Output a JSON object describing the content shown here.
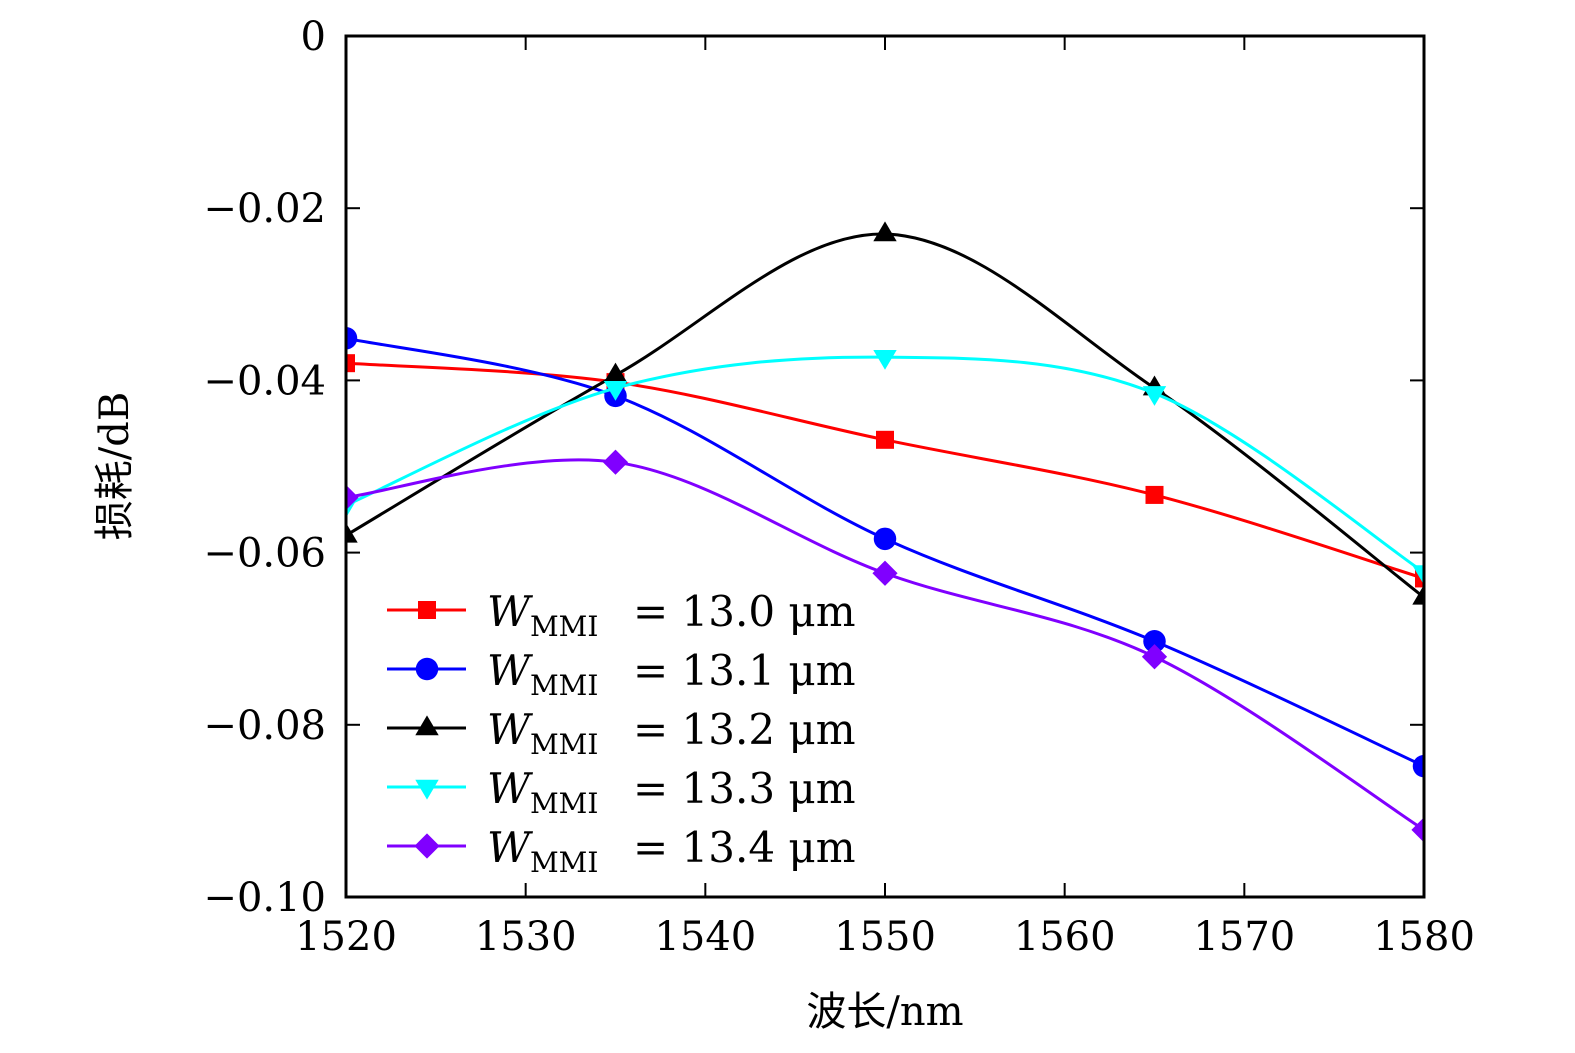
{
  "chart_data": {
    "type": "line",
    "title": "",
    "xlabel": "波长/nm",
    "ylabel": "损耗/dB",
    "xlim": [
      1520,
      1580
    ],
    "ylim": [
      -0.1,
      0
    ],
    "xticks": [
      1520,
      1530,
      1540,
      1550,
      1560,
      1570,
      1580
    ],
    "xtick_labels": [
      "1520",
      "1530",
      "1540",
      "1550",
      "1560",
      "1570",
      "1580"
    ],
    "yticks": [
      0,
      -0.02,
      -0.04,
      -0.06,
      -0.08,
      -0.1
    ],
    "ytick_labels": [
      "0",
      "−0.02",
      "−0.04",
      "−0.06",
      "−0.08",
      "−0.10"
    ],
    "grid": false,
    "legend_position": "bottom-left",
    "smooth": true,
    "x": [
      1520,
      1535,
      1550,
      1565,
      1580
    ],
    "series": [
      {
        "name": "W_MMI = 13.0 μm",
        "label_main": "W",
        "label_sub": "MMI",
        "label_value": "= 13.0 μm",
        "color": "#ff0000",
        "marker": "square",
        "values": [
          -0.038,
          -0.0402,
          -0.0469,
          -0.0533,
          -0.063
        ]
      },
      {
        "name": "W_MMI = 13.1 μm",
        "label_main": "W",
        "label_sub": "MMI",
        "label_value": "= 13.1 μm",
        "color": "#0000ff",
        "marker": "circle",
        "values": [
          -0.0351,
          -0.0418,
          -0.0584,
          -0.0703,
          -0.0848
        ]
      },
      {
        "name": "W_MMI = 13.2 μm",
        "label_main": "W",
        "label_sub": "MMI",
        "label_value": "= 13.2 μm",
        "color": "#000000",
        "marker": "triangle-up",
        "values": [
          -0.058,
          -0.0394,
          -0.023,
          -0.0409,
          -0.0652
        ]
      },
      {
        "name": "W_MMI = 13.3 μm",
        "label_main": "W",
        "label_sub": "MMI",
        "label_value": "= 13.3 μm",
        "color": "#00ffff",
        "marker": "triangle-down",
        "values": [
          -0.0545,
          -0.0409,
          -0.0373,
          -0.0415,
          -0.0623
        ]
      },
      {
        "name": "W_MMI = 13.4 μm",
        "label_main": "W",
        "label_sub": "MMI",
        "label_value": "= 13.4 μm",
        "color": "#8000ff",
        "marker": "diamond",
        "values": [
          -0.0536,
          -0.0495,
          -0.0624,
          -0.0721,
          -0.0922
        ]
      }
    ]
  }
}
